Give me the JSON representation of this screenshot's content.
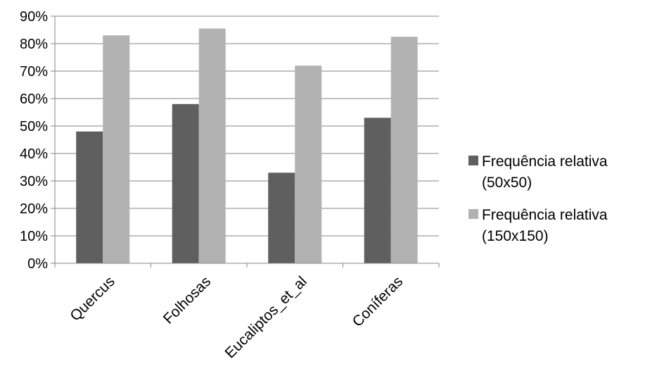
{
  "chart_data": {
    "type": "bar",
    "title": "",
    "xlabel": "",
    "ylabel": "",
    "categories": [
      "Quercus",
      "Folhosas",
      "Eucaliptos_et_al",
      "Coníferas"
    ],
    "series": [
      {
        "name_lines": [
          "Frequência relativa",
          "(50x50)"
        ],
        "color": "#5f5f5f",
        "values": [
          0.48,
          0.58,
          0.33,
          0.53
        ]
      },
      {
        "name_lines": [
          "Frequência relativa",
          "(150x150)"
        ],
        "color": "#b2b2b2",
        "values": [
          0.83,
          0.855,
          0.72,
          0.825
        ]
      }
    ],
    "ylim": [
      0,
      0.9
    ],
    "y_ticks": [
      "0%",
      "10%",
      "20%",
      "30%",
      "40%",
      "50%",
      "60%",
      "70%",
      "80%",
      "90%"
    ],
    "grid": true,
    "legend_position": "right"
  }
}
